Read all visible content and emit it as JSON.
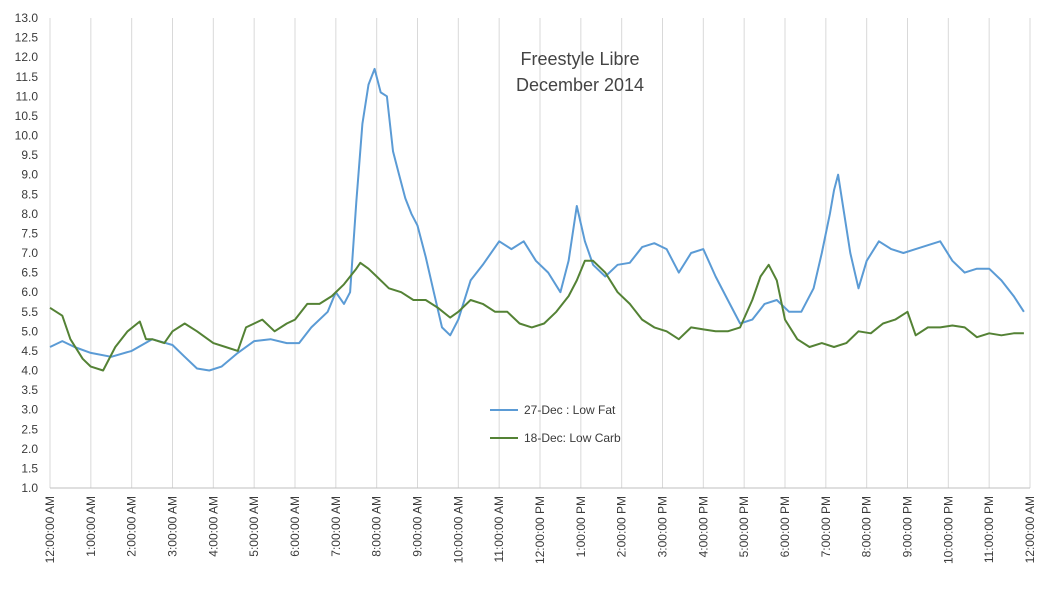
{
  "chart_data": {
    "type": "line",
    "title": "Freestyle Libre",
    "subtitle": "December 2014",
    "xlabel": "",
    "ylabel": "",
    "ylim": [
      1.0,
      13.0
    ],
    "y_ticks": [
      1.0,
      1.5,
      2.0,
      2.5,
      3.0,
      3.5,
      4.0,
      4.5,
      5.0,
      5.5,
      6.0,
      6.5,
      7.0,
      7.5,
      8.0,
      8.5,
      9.0,
      9.5,
      10.0,
      10.5,
      11.0,
      11.5,
      12.0,
      12.5,
      13.0
    ],
    "y_tick_labels": [
      "1.0",
      "1.5",
      "2.0",
      "2.5",
      "3.0",
      "3.5",
      "4.0",
      "4.5",
      "5.0",
      "5.5",
      "6.0",
      "6.5",
      "7.0",
      "7.5",
      "8.0",
      "8.5",
      "9.0",
      "9.5",
      "10.0",
      "10.5",
      "11.0",
      "11.5",
      "12.0",
      "12.5",
      "13.0"
    ],
    "xlim": [
      0,
      24
    ],
    "x_unit": "hour of day",
    "x_tick_labels": [
      "12:00:00 AM",
      "1:00:00 AM",
      "2:00:00 AM",
      "3:00:00 AM",
      "4:00:00 AM",
      "5:00:00 AM",
      "6:00:00 AM",
      "7:00:00 AM",
      "8:00:00 AM",
      "9:00:00 AM",
      "10:00:00 AM",
      "11:00:00 AM",
      "12:00:00 PM",
      "1:00:00 PM",
      "2:00:00 PM",
      "3:00:00 PM",
      "4:00:00 PM",
      "5:00:00 PM",
      "6:00:00 PM",
      "7:00:00 PM",
      "8:00:00 PM",
      "9:00:00 PM",
      "10:00:00 PM",
      "11:00:00 PM",
      "12:00:00 AM"
    ],
    "grid": "vertical",
    "legend_position": "center-bottom",
    "series": [
      {
        "name": "27-Dec : Low Fat",
        "color": "#5b9bd5",
        "x": [
          0,
          0.3,
          0.6,
          1.0,
          1.5,
          2.0,
          2.5,
          3.0,
          3.3,
          3.6,
          3.9,
          4.2,
          4.6,
          5.0,
          5.4,
          5.8,
          6.1,
          6.4,
          6.8,
          7.0,
          7.2,
          7.35,
          7.5,
          7.65,
          7.8,
          7.95,
          8.1,
          8.25,
          8.4,
          8.55,
          8.7,
          8.85,
          9.0,
          9.2,
          9.4,
          9.6,
          9.8,
          10.0,
          10.3,
          10.6,
          11.0,
          11.3,
          11.6,
          11.9,
          12.2,
          12.5,
          12.7,
          12.9,
          13.1,
          13.3,
          13.6,
          13.9,
          14.2,
          14.5,
          14.8,
          15.1,
          15.4,
          15.7,
          16.0,
          16.3,
          16.6,
          16.9,
          17.2,
          17.5,
          17.8,
          18.1,
          18.4,
          18.7,
          18.9,
          19.1,
          19.2,
          19.3,
          19.45,
          19.6,
          19.8,
          20.0,
          20.3,
          20.6,
          20.9,
          21.2,
          21.5,
          21.8,
          22.1,
          22.4,
          22.7,
          23.0,
          23.3,
          23.6,
          23.85
        ],
        "values": [
          4.6,
          4.75,
          4.6,
          4.45,
          4.35,
          4.5,
          4.8,
          4.65,
          4.35,
          4.05,
          4.0,
          4.1,
          4.45,
          4.75,
          4.8,
          4.7,
          4.7,
          5.1,
          5.5,
          6.0,
          5.7,
          6.0,
          8.3,
          10.3,
          11.3,
          11.7,
          11.1,
          11.0,
          9.6,
          9.0,
          8.4,
          8.0,
          7.7,
          6.9,
          6.0,
          5.1,
          4.9,
          5.3,
          6.3,
          6.7,
          7.3,
          7.1,
          7.3,
          6.8,
          6.5,
          6.0,
          6.8,
          8.2,
          7.3,
          6.7,
          6.4,
          6.7,
          6.75,
          7.15,
          7.25,
          7.1,
          6.5,
          7.0,
          7.1,
          6.4,
          5.8,
          5.2,
          5.3,
          5.7,
          5.8,
          5.5,
          5.5,
          6.1,
          7.0,
          8.0,
          8.6,
          9.0,
          8.0,
          7.0,
          6.1,
          6.8,
          7.3,
          7.1,
          7.0,
          7.1,
          7.2,
          7.3,
          6.8,
          6.5,
          6.6,
          6.6,
          6.3,
          5.9,
          5.5
        ]
      },
      {
        "name": "18-Dec: Low Carb",
        "color": "#548235",
        "x": [
          0,
          0.3,
          0.5,
          0.8,
          1.0,
          1.3,
          1.6,
          1.9,
          2.2,
          2.35,
          2.5,
          2.8,
          3.0,
          3.3,
          3.6,
          4.0,
          4.3,
          4.6,
          4.8,
          5.0,
          5.2,
          5.5,
          5.8,
          6.0,
          6.3,
          6.6,
          6.9,
          7.2,
          7.5,
          7.6,
          7.8,
          8.0,
          8.3,
          8.6,
          8.9,
          9.2,
          9.5,
          9.8,
          10.0,
          10.3,
          10.6,
          10.9,
          11.2,
          11.5,
          11.8,
          12.1,
          12.4,
          12.7,
          12.9,
          13.1,
          13.3,
          13.6,
          13.9,
          14.2,
          14.5,
          14.8,
          15.1,
          15.4,
          15.7,
          16.0,
          16.3,
          16.6,
          16.9,
          17.2,
          17.4,
          17.6,
          17.8,
          18.0,
          18.3,
          18.6,
          18.9,
          19.2,
          19.5,
          19.8,
          20.1,
          20.4,
          20.7,
          21.0,
          21.2,
          21.5,
          21.8,
          22.1,
          22.4,
          22.7,
          23.0,
          23.3,
          23.6,
          23.85
        ],
        "values": [
          5.6,
          5.4,
          4.8,
          4.3,
          4.1,
          4.0,
          4.6,
          5.0,
          5.25,
          4.8,
          4.8,
          4.7,
          5.0,
          5.2,
          5.0,
          4.7,
          4.6,
          4.5,
          5.1,
          5.2,
          5.3,
          5.0,
          5.2,
          5.3,
          5.7,
          5.7,
          5.9,
          6.2,
          6.6,
          6.75,
          6.6,
          6.4,
          6.1,
          6.0,
          5.8,
          5.8,
          5.6,
          5.35,
          5.5,
          5.8,
          5.7,
          5.5,
          5.5,
          5.2,
          5.1,
          5.2,
          5.5,
          5.9,
          6.3,
          6.8,
          6.8,
          6.5,
          6.0,
          5.7,
          5.3,
          5.1,
          5.0,
          4.8,
          5.1,
          5.05,
          5.0,
          5.0,
          5.1,
          5.8,
          6.4,
          6.7,
          6.3,
          5.3,
          4.8,
          4.6,
          4.7,
          4.6,
          4.7,
          5.0,
          4.95,
          5.2,
          5.3,
          5.5,
          4.9,
          5.1,
          5.1,
          5.15,
          5.1,
          4.85,
          4.95,
          4.9,
          4.95,
          4.95
        ]
      }
    ]
  }
}
